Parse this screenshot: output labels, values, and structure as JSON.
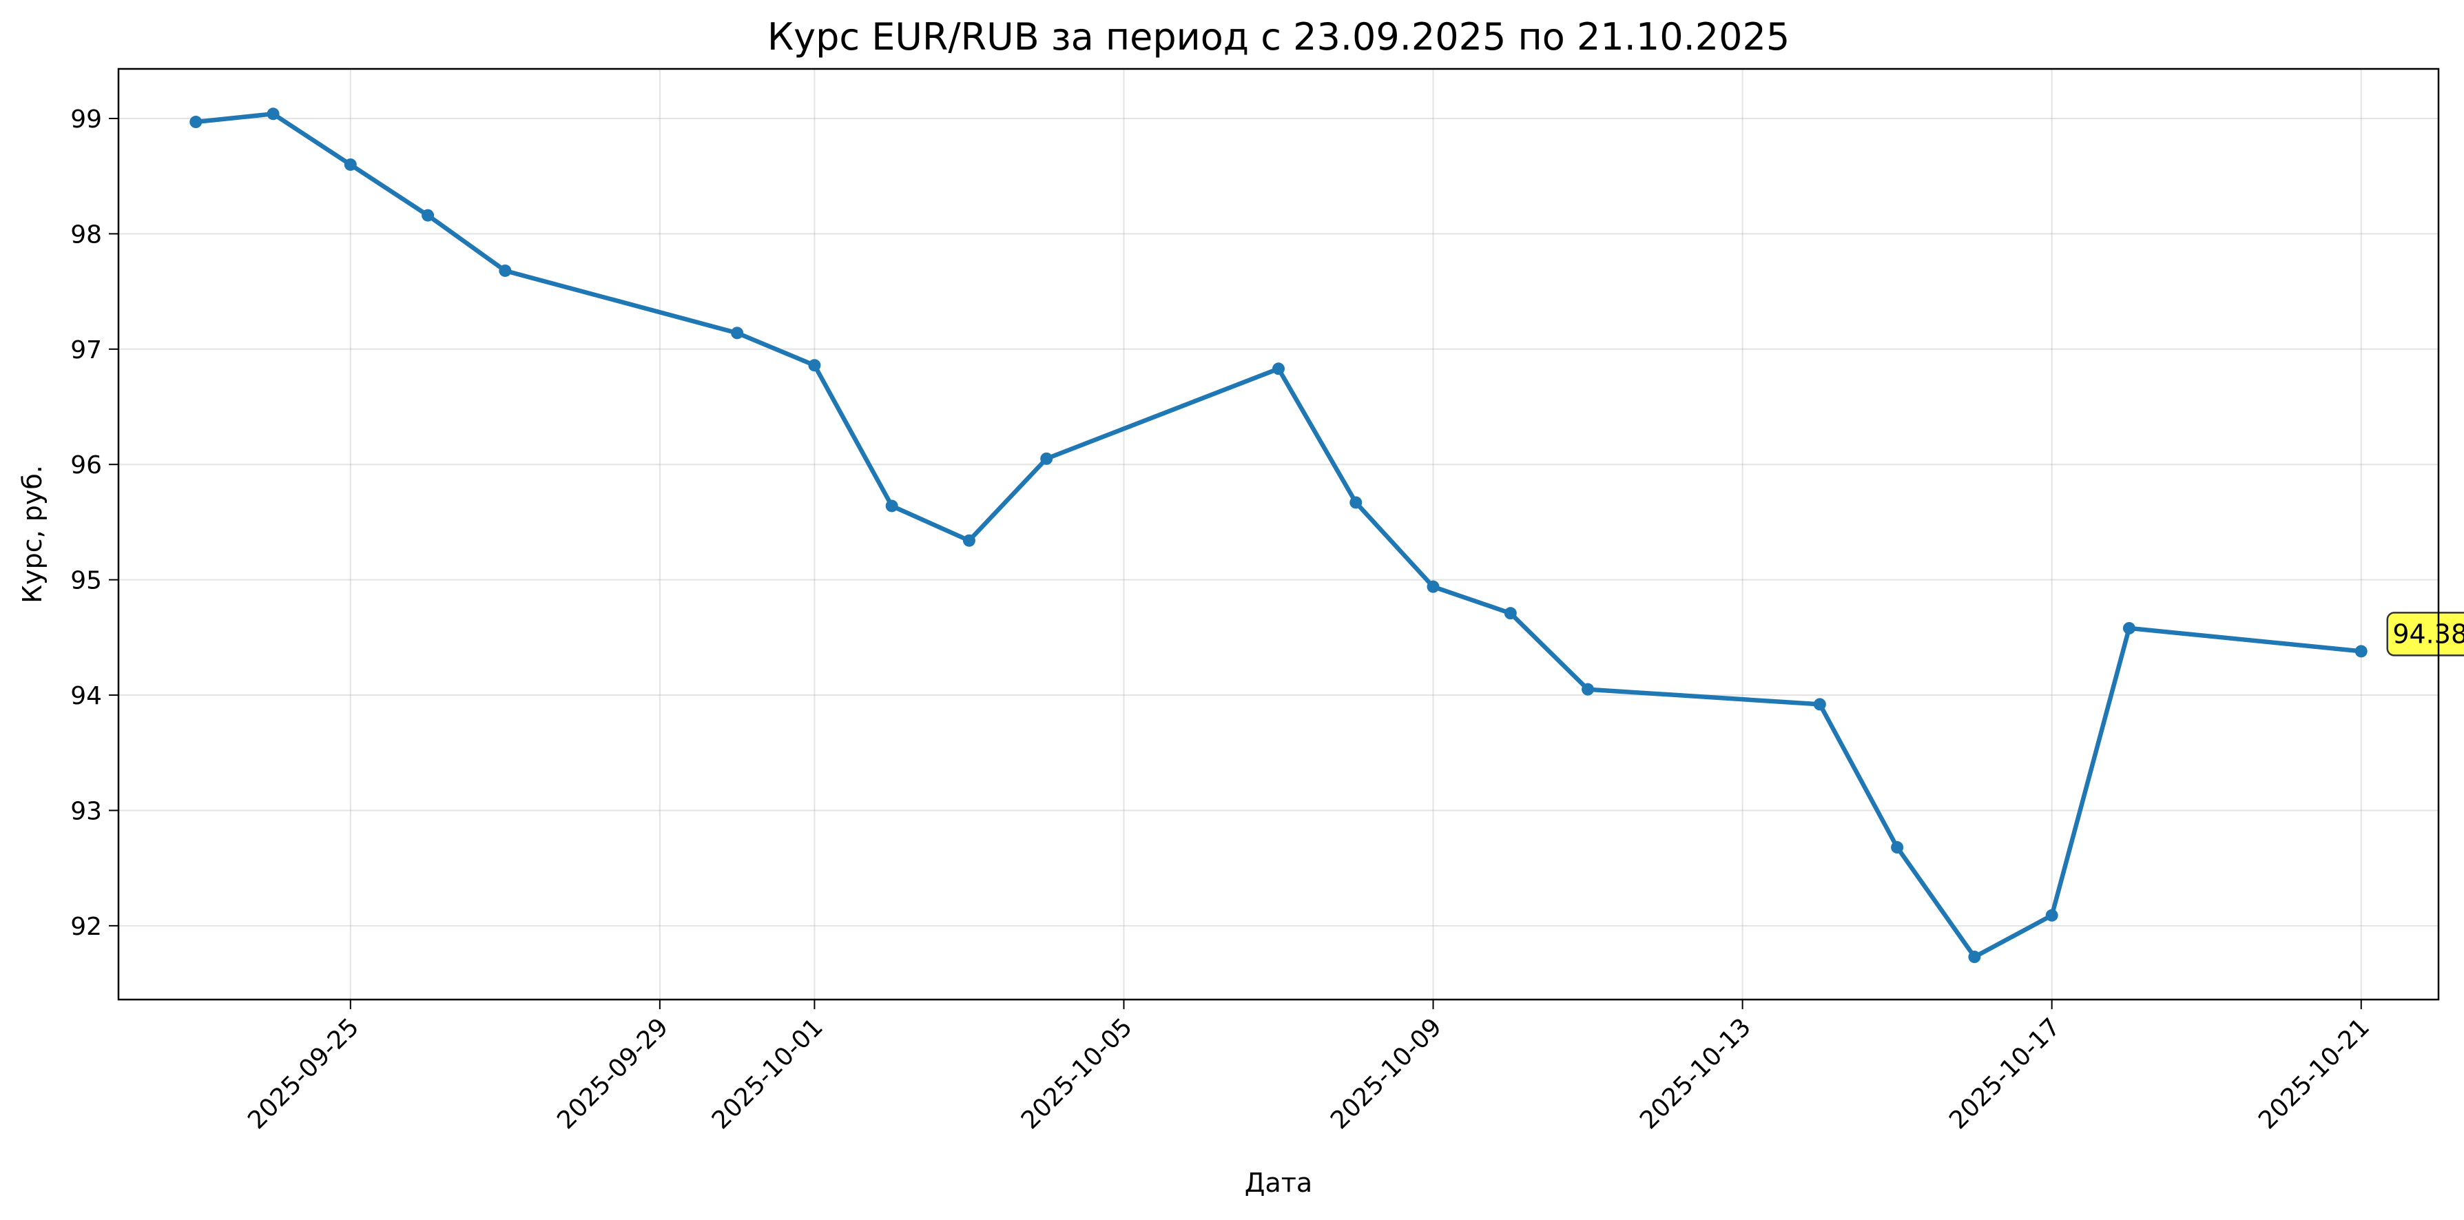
{
  "chart_data": {
    "type": "line",
    "title": "Курс EUR/RUB за период с 23.09.2025 по 21.10.2025",
    "xlabel": "Дата",
    "ylabel": "Курс, руб.",
    "x_type": "date",
    "xlim": [
      "2025-09-22",
      "2025-10-22"
    ],
    "ylim": [
      91.36,
      99.43
    ],
    "x_ticks": [
      "2025-09-25",
      "2025-09-29",
      "2025-10-01",
      "2025-10-05",
      "2025-10-09",
      "2025-10-13",
      "2025-10-17",
      "2025-10-21"
    ],
    "y_ticks": [
      92,
      93,
      94,
      95,
      96,
      97,
      98,
      99
    ],
    "grid": true,
    "legend": "none",
    "series": [
      {
        "color": "#1f77b4",
        "marker": "circle",
        "points": [
          {
            "x": "2025-09-23",
            "y": 98.97
          },
          {
            "x": "2025-09-24",
            "y": 99.04
          },
          {
            "x": "2025-09-25",
            "y": 98.6
          },
          {
            "x": "2025-09-26",
            "y": 98.16
          },
          {
            "x": "2025-09-27",
            "y": 97.68
          },
          {
            "x": "2025-09-30",
            "y": 97.14
          },
          {
            "x": "2025-10-01",
            "y": 96.86
          },
          {
            "x": "2025-10-02",
            "y": 95.64
          },
          {
            "x": "2025-10-03",
            "y": 95.34
          },
          {
            "x": "2025-10-04",
            "y": 96.05
          },
          {
            "x": "2025-10-07",
            "y": 96.83
          },
          {
            "x": "2025-10-08",
            "y": 95.67
          },
          {
            "x": "2025-10-09",
            "y": 94.94
          },
          {
            "x": "2025-10-10",
            "y": 94.71
          },
          {
            "x": "2025-10-11",
            "y": 94.05
          },
          {
            "x": "2025-10-14",
            "y": 93.92
          },
          {
            "x": "2025-10-15",
            "y": 92.68
          },
          {
            "x": "2025-10-16",
            "y": 91.73
          },
          {
            "x": "2025-10-17",
            "y": 92.09
          },
          {
            "x": "2025-10-18",
            "y": 94.58
          },
          {
            "x": "2025-10-21",
            "y": 94.38
          }
        ]
      }
    ],
    "annotations": [
      {
        "text": "94.38",
        "x": "2025-10-21",
        "y": 94.38,
        "background": "#ffff4d"
      }
    ]
  }
}
